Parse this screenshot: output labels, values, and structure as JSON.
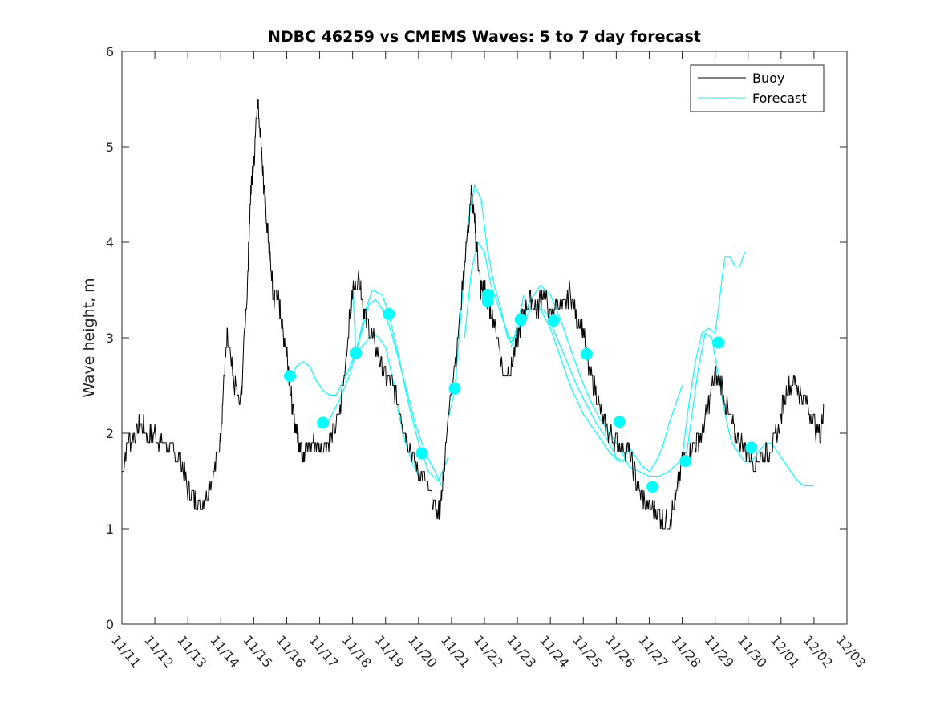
{
  "chart_data": {
    "type": "line",
    "title": "NDBC 46259 vs CMEMS Waves: 5 to 7 day forecast",
    "xlabel": "",
    "ylabel": "Wave height, m",
    "xlim": [
      0,
      22
    ],
    "ylim": [
      0,
      6
    ],
    "yticks": [
      0,
      1,
      2,
      3,
      4,
      5,
      6
    ],
    "xtick_labels": [
      "11/11",
      "11/12",
      "11/13",
      "11/14",
      "11/15",
      "11/16",
      "11/17",
      "11/18",
      "11/19",
      "11/20",
      "11/21",
      "11/22",
      "11/23",
      "11/24",
      "11/25",
      "11/26",
      "11/27",
      "11/28",
      "11/29",
      "11/30",
      "12/01",
      "12/02",
      "12/03"
    ],
    "legend": {
      "position": "top-right",
      "entries": [
        "Buoy",
        "Forecast"
      ]
    },
    "colors": {
      "buoy": "#000000",
      "forecast": "#00ffff",
      "axes": "#262626"
    },
    "buoy": {
      "name": "Buoy",
      "x": [
        0,
        0.2,
        0.4,
        0.6,
        0.8,
        1.0,
        1.2,
        1.4,
        1.6,
        1.8,
        2.0,
        2.2,
        2.4,
        2.6,
        2.8,
        3.0,
        3.1,
        3.2,
        3.4,
        3.6,
        3.8,
        3.9,
        4.0,
        4.1,
        4.2,
        4.3,
        4.4,
        4.5,
        4.6,
        4.7,
        4.8,
        4.9,
        5.0,
        5.1,
        5.2,
        5.3,
        5.4,
        5.5,
        5.6,
        5.8,
        6.0,
        6.2,
        6.4,
        6.6,
        6.8,
        7.0,
        7.2,
        7.3,
        7.4,
        7.6,
        7.8,
        8.0,
        8.2,
        8.4,
        8.6,
        8.8,
        9.0,
        9.2,
        9.4,
        9.6,
        9.7,
        9.8,
        10.0,
        10.2,
        10.4,
        10.6,
        10.7,
        10.8,
        10.9,
        11.0,
        11.1,
        11.2,
        11.4,
        11.6,
        11.8,
        12.0,
        12.2,
        12.4,
        12.6,
        12.8,
        13.0,
        13.2,
        13.4,
        13.6,
        13.8,
        14.0,
        14.2,
        14.4,
        14.6,
        14.8,
        15.0,
        15.2,
        15.4,
        15.6,
        15.8,
        16.0,
        16.2,
        16.4,
        16.6,
        16.8,
        17.0,
        17.2,
        17.4,
        17.6,
        17.8,
        18.0,
        18.2,
        18.4,
        18.6,
        18.8,
        19.0,
        19.2,
        19.4,
        19.6,
        19.8,
        20.0,
        20.2,
        20.4,
        20.6,
        20.8,
        21.0,
        21.2,
        21.3
      ],
      "y": [
        1.6,
        1.9,
        2.0,
        2.1,
        1.95,
        2.0,
        1.9,
        1.85,
        1.8,
        1.7,
        1.4,
        1.3,
        1.25,
        1.4,
        1.6,
        2.0,
        2.6,
        3.0,
        2.5,
        2.3,
        3.5,
        4.5,
        4.8,
        5.5,
        5.2,
        4.6,
        4.2,
        3.8,
        3.4,
        3.5,
        3.3,
        3.0,
        2.9,
        2.5,
        2.2,
        2.0,
        1.9,
        1.8,
        1.85,
        1.9,
        1.85,
        1.9,
        2.0,
        2.2,
        2.8,
        3.5,
        3.6,
        3.4,
        3.2,
        3.0,
        2.8,
        2.6,
        2.5,
        2.3,
        2.0,
        1.8,
        1.6,
        1.5,
        1.3,
        1.15,
        1.3,
        1.8,
        2.5,
        3.0,
        3.8,
        4.5,
        4.2,
        3.8,
        3.5,
        3.5,
        3.4,
        3.3,
        3.0,
        2.6,
        2.7,
        3.0,
        3.3,
        3.4,
        3.3,
        3.5,
        3.2,
        3.4,
        3.3,
        3.5,
        3.2,
        3.1,
        2.6,
        2.4,
        2.1,
        2.0,
        1.9,
        1.85,
        1.8,
        1.5,
        1.3,
        1.25,
        1.2,
        1.1,
        1.05,
        1.3,
        1.7,
        1.8,
        1.9,
        2.0,
        2.3,
        2.6,
        2.5,
        2.2,
        2.0,
        1.9,
        1.8,
        1.7,
        1.75,
        1.8,
        1.9,
        2.2,
        2.5,
        2.55,
        2.4,
        2.3,
        2.1,
        1.95,
        2.3
      ]
    },
    "forecast_segments": [
      {
        "x": [
          5.1,
          5.3,
          5.5,
          5.7,
          5.9,
          6.1,
          6.3,
          6.5,
          6.8,
          7.1,
          7.4,
          7.6,
          7.8,
          8.0,
          8.2,
          8.4,
          8.6,
          8.8,
          9.0
        ],
        "y": [
          2.6,
          2.7,
          2.75,
          2.7,
          2.55,
          2.45,
          2.4,
          2.4,
          2.6,
          2.85,
          2.95,
          3.05,
          3.0,
          2.9,
          2.6,
          2.2,
          1.9,
          1.7,
          1.55
        ]
      },
      {
        "x": [
          6.1,
          6.3,
          6.6,
          6.9,
          7.1,
          7.4,
          7.6,
          7.9,
          8.1,
          8.4,
          8.7,
          9.0,
          9.3,
          9.6,
          9.9
        ],
        "y": [
          2.1,
          2.15,
          2.35,
          2.6,
          2.85,
          3.3,
          3.5,
          3.45,
          3.25,
          2.8,
          2.3,
          1.9,
          1.6,
          1.5,
          1.75
        ]
      },
      {
        "x": [
          7.0,
          7.1,
          7.3,
          7.5,
          7.7,
          8.0,
          8.3,
          8.6,
          8.9,
          9.2,
          9.5,
          9.7
        ],
        "y": [
          3.55,
          2.85,
          3.1,
          3.35,
          3.4,
          3.25,
          2.9,
          2.5,
          2.1,
          1.8,
          1.6,
          1.45
        ]
      },
      {
        "x": [
          9.9,
          10.1,
          10.3,
          10.5,
          10.7,
          10.9,
          11.1,
          11.3,
          11.5,
          11.7,
          11.9,
          12.2
        ],
        "y": [
          2.15,
          2.45,
          3.3,
          4.2,
          4.6,
          4.45,
          3.9,
          3.55,
          3.3,
          3.0,
          3.0,
          3.45
        ]
      },
      {
        "x": [
          10.4,
          10.6,
          10.8,
          11.0,
          11.2,
          11.5,
          11.8,
          12.1,
          12.4,
          12.7,
          13.0,
          13.3,
          13.6,
          14.0,
          14.4,
          14.8,
          15.1
        ],
        "y": [
          3.0,
          3.7,
          4.0,
          3.9,
          3.55,
          3.25,
          2.95,
          3.1,
          3.3,
          3.3,
          3.1,
          2.8,
          2.5,
          2.2,
          2.0,
          1.8,
          1.7
        ]
      },
      {
        "x": [
          11.8,
          12.1,
          12.4,
          12.7,
          13.0,
          13.3,
          13.6,
          13.9,
          14.2,
          14.5,
          14.8,
          15.1,
          15.4,
          15.7,
          16.0,
          16.3,
          16.6,
          16.9
        ],
        "y": [
          2.9,
          3.15,
          3.4,
          3.55,
          3.45,
          3.2,
          2.9,
          2.6,
          2.35,
          2.15,
          2.0,
          1.85,
          1.65,
          1.6,
          1.55,
          1.55,
          1.6,
          1.7
        ]
      },
      {
        "x": [
          12.0,
          12.3,
          12.6,
          12.9,
          13.2,
          13.5,
          13.8,
          14.1,
          14.4,
          14.7,
          15.0,
          15.2,
          15.4,
          15.6,
          15.8,
          16.0,
          16.2,
          16.4,
          16.6,
          16.8,
          17.0
        ],
        "y": [
          3.2,
          3.3,
          3.35,
          3.25,
          3.0,
          2.75,
          2.5,
          2.3,
          2.1,
          1.95,
          1.75,
          1.7,
          1.85,
          1.75,
          1.65,
          1.6,
          1.7,
          1.85,
          2.1,
          2.3,
          2.5
        ]
      },
      {
        "x": [
          17.1,
          17.3,
          17.5,
          17.7,
          17.9,
          18.1,
          18.3,
          18.5,
          18.7,
          18.9,
          19.1,
          19.3,
          19.5,
          19.7,
          19.9,
          20.1,
          20.3,
          20.5,
          20.7,
          20.9,
          21.0
        ],
        "y": [
          1.7,
          2.2,
          2.7,
          3.05,
          3.0,
          2.6,
          2.2,
          1.9,
          1.8,
          1.7,
          1.7,
          1.8,
          1.88,
          1.9,
          1.8,
          1.7,
          1.6,
          1.5,
          1.45,
          1.45,
          1.45
        ]
      },
      {
        "x": [
          17.0,
          17.2,
          17.4,
          17.6,
          17.8,
          18.0,
          18.1,
          18.2,
          18.3,
          18.45,
          18.6,
          18.75,
          18.9
        ],
        "y": [
          1.75,
          2.3,
          2.75,
          3.05,
          3.1,
          3.05,
          3.3,
          3.6,
          3.85,
          3.85,
          3.75,
          3.75,
          3.9
        ]
      }
    ],
    "forecast_points": {
      "name": "Forecast",
      "x": [
        5.1,
        6.1,
        7.1,
        8.1,
        9.1,
        10.1,
        11.1,
        12.1,
        13.1,
        14.1,
        15.1,
        16.1,
        17.1,
        18.1,
        19.1
      ],
      "y": [
        2.6,
        2.11,
        2.84,
        3.25,
        1.79,
        2.47,
        3.45,
        3.19,
        3.18,
        2.83,
        2.12,
        1.44,
        1.71,
        2.95,
        1.85
      ]
    },
    "forecast_points_extra": {
      "x": [
        11.1
      ],
      "y": [
        3.38
      ]
    }
  }
}
